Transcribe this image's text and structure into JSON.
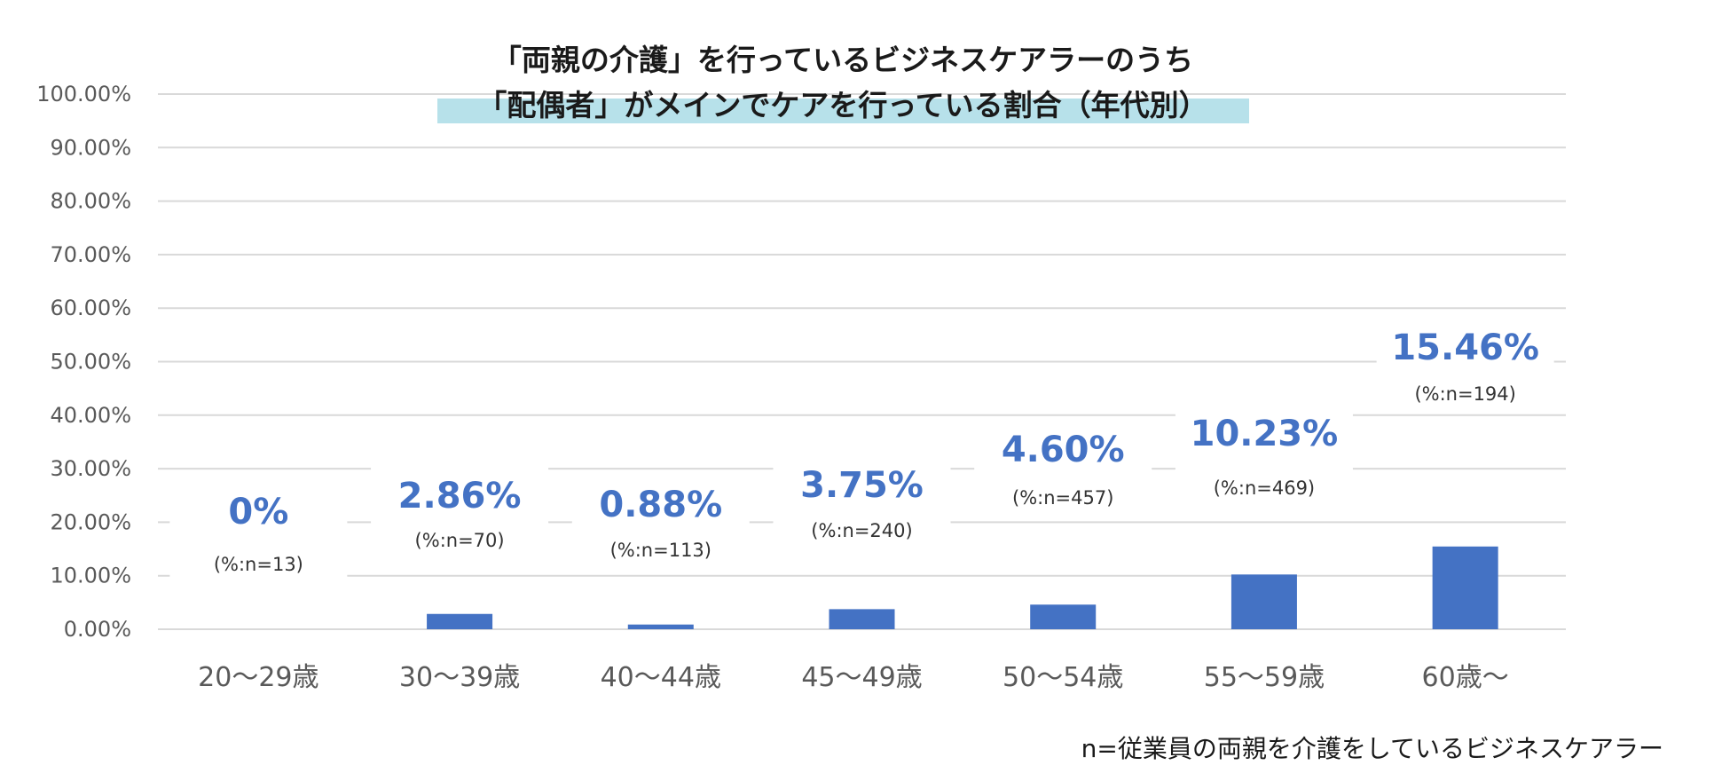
{
  "chart_data": {
    "type": "bar",
    "title_lines": [
      "「両親の介護」を行っているビジネスケアラーのうち",
      "「配偶者」がメインでケアを行っている割合（年代別）"
    ],
    "categories": [
      "20～29歳",
      "30～39歳",
      "40～44歳",
      "45～49歳",
      "50～54歳",
      "55～59歳",
      "60歳～"
    ],
    "values": [
      0,
      2.86,
      0.88,
      3.75,
      4.6,
      10.23,
      15.46
    ],
    "value_labels": [
      "0%",
      "2.86%",
      "0.88%",
      "3.75%",
      "4.60%",
      "10.23%",
      "15.46%"
    ],
    "n_labels": [
      "(%:n=13)",
      "(%:n=70)",
      "(%:n=113)",
      "(%:n=240)",
      "(%:n=457)",
      "(%:n=469)",
      "(%:n=194)"
    ],
    "y_ticks": [
      "0.00%",
      "10.00%",
      "20.00%",
      "30.00%",
      "40.00%",
      "50.00%",
      "60.00%",
      "70.00%",
      "80.00%",
      "90.00%",
      "100.00%"
    ],
    "ylim": [
      0,
      100
    ],
    "grid": true,
    "footnote": "n=従業員の両親を介護をしているビジネスケアラー",
    "colors": {
      "bar": "#4472c4",
      "value_label": "#4472c4",
      "title_highlight": "#b7e1ea",
      "grid": "#d9d9d9"
    }
  }
}
